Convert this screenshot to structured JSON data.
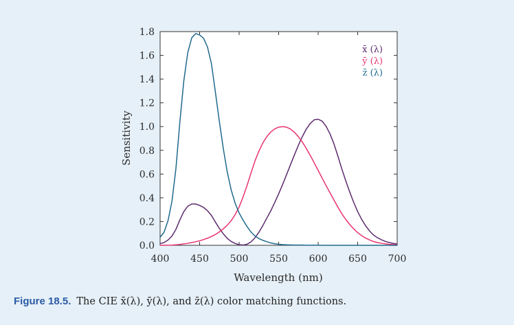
{
  "chart_data": {
    "type": "line",
    "title": "",
    "xlabel": "Wavelength (nm)",
    "ylabel": "Sensitivity",
    "xlim": [
      400,
      700
    ],
    "ylim": [
      0,
      1.8
    ],
    "xticks": [
      400,
      450,
      500,
      550,
      600,
      650,
      700
    ],
    "yticks": [
      0,
      0.2,
      0.4,
      0.6,
      0.8,
      1.0,
      1.2,
      1.4,
      1.6,
      1.8
    ],
    "xtick_labels": [
      "400",
      "450",
      "500",
      "550",
      "600",
      "650",
      "700"
    ],
    "ytick_labels": [
      "0.0",
      "0.2",
      "0.4",
      "0.6",
      "0.8",
      "1.0",
      "1.2",
      "1.4",
      "1.6",
      "1.8"
    ],
    "grid": false,
    "legend_position": "top-right",
    "x": [
      400,
      405,
      410,
      415,
      420,
      425,
      430,
      435,
      440,
      445,
      450,
      455,
      460,
      465,
      470,
      475,
      480,
      485,
      490,
      495,
      500,
      505,
      510,
      515,
      520,
      525,
      530,
      535,
      540,
      545,
      550,
      555,
      560,
      565,
      570,
      575,
      580,
      585,
      590,
      595,
      600,
      605,
      610,
      615,
      620,
      625,
      630,
      635,
      640,
      645,
      650,
      655,
      660,
      665,
      670,
      675,
      680,
      685,
      690,
      695,
      700
    ],
    "series": [
      {
        "name": "x̄ (λ)",
        "color": "#5c2a6e",
        "values": [
          0.014,
          0.023,
          0.044,
          0.078,
          0.134,
          0.214,
          0.284,
          0.329,
          0.348,
          0.348,
          0.336,
          0.319,
          0.291,
          0.251,
          0.195,
          0.142,
          0.096,
          0.058,
          0.032,
          0.015,
          0.005,
          0.002,
          0.009,
          0.029,
          0.063,
          0.11,
          0.166,
          0.229,
          0.29,
          0.36,
          0.433,
          0.512,
          0.595,
          0.679,
          0.762,
          0.843,
          0.916,
          0.979,
          1.026,
          1.057,
          1.062,
          1.046,
          1.003,
          0.938,
          0.854,
          0.751,
          0.642,
          0.542,
          0.448,
          0.361,
          0.284,
          0.219,
          0.165,
          0.121,
          0.087,
          0.064,
          0.047,
          0.033,
          0.023,
          0.016,
          0.011
        ]
      },
      {
        "name": "ȳ (λ)",
        "color": "#e8336e",
        "values": [
          0.0,
          0.001,
          0.001,
          0.002,
          0.004,
          0.007,
          0.012,
          0.017,
          0.023,
          0.03,
          0.038,
          0.048,
          0.06,
          0.074,
          0.091,
          0.113,
          0.139,
          0.169,
          0.208,
          0.259,
          0.323,
          0.407,
          0.503,
          0.608,
          0.71,
          0.793,
          0.862,
          0.915,
          0.954,
          0.98,
          0.995,
          1.0,
          0.995,
          0.979,
          0.952,
          0.915,
          0.87,
          0.816,
          0.757,
          0.695,
          0.631,
          0.567,
          0.503,
          0.442,
          0.381,
          0.321,
          0.265,
          0.217,
          0.175,
          0.138,
          0.107,
          0.082,
          0.061,
          0.045,
          0.032,
          0.023,
          0.017,
          0.012,
          0.008,
          0.006,
          0.004
        ]
      },
      {
        "name": "z̄ (λ)",
        "color": "#1f6a8c",
        "values": [
          0.068,
          0.11,
          0.207,
          0.371,
          0.646,
          1.039,
          1.386,
          1.623,
          1.747,
          1.783,
          1.772,
          1.744,
          1.669,
          1.528,
          1.288,
          1.042,
          0.813,
          0.616,
          0.465,
          0.353,
          0.272,
          0.212,
          0.158,
          0.112,
          0.078,
          0.057,
          0.042,
          0.03,
          0.02,
          0.013,
          0.009,
          0.006,
          0.004,
          0.003,
          0.002,
          0.002,
          0.002,
          0.001,
          0.001,
          0.001,
          0.001,
          0.0,
          0.0,
          0.0,
          0.0,
          0.0,
          0.0,
          0.0,
          0.0,
          0.0,
          0.0,
          0.0,
          0.0,
          0.0,
          0.0,
          0.0,
          0.0,
          0.0,
          0.0,
          0.0,
          0.0
        ]
      }
    ]
  },
  "caption": {
    "label": "Figure 18.5.",
    "text": "The CIE x̄(λ), ȳ(λ), and z̄(λ) color matching functions."
  }
}
